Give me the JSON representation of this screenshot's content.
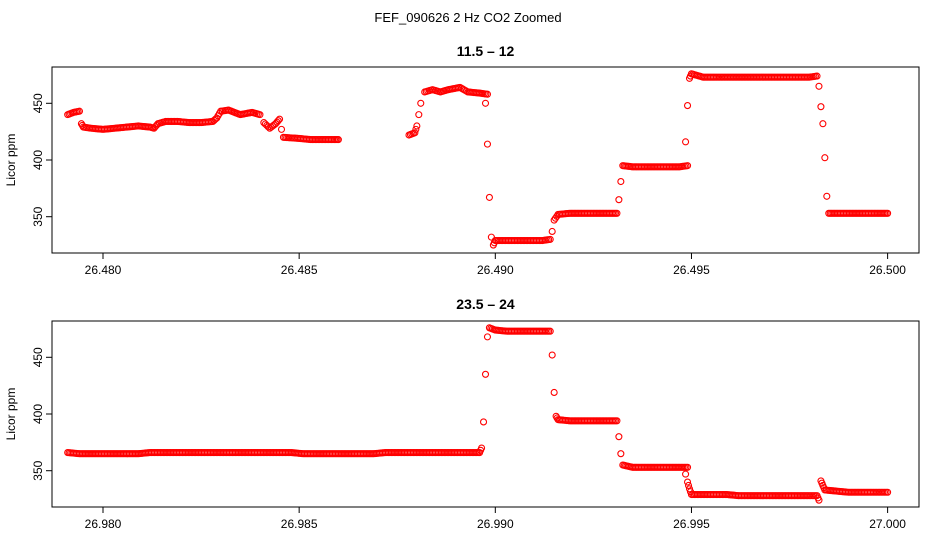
{
  "figure_title": "FEF_090626  2 Hz CO2 Zoomed",
  "colors": {
    "marker": "#ff0000",
    "axis": "#000000",
    "background": "#ffffff"
  },
  "chart_data": [
    {
      "type": "scatter",
      "title": "11.5 – 12",
      "xlabel": "",
      "ylabel": "Licor ppm",
      "xlim": [
        26.4787,
        26.5008
      ],
      "ylim": [
        318,
        482
      ],
      "x_ticks": [
        "26.480",
        "26.485",
        "26.490",
        "26.495",
        "26.500"
      ],
      "x_tick_values": [
        26.48,
        26.485,
        26.49,
        26.495,
        26.5
      ],
      "y_ticks": [
        "350",
        "400",
        "450"
      ],
      "y_tick_values": [
        350,
        400,
        450
      ],
      "grid": false,
      "marker": "open-circle",
      "series": [
        {
          "values": [
            [
              26.4791,
              440
            ],
            [
              26.47925,
              442
            ],
            [
              26.4794,
              443
            ],
            [
              26.47945,
              432
            ],
            [
              26.4795,
              429
            ],
            [
              26.4797,
              428
            ],
            [
              26.48,
              427
            ],
            [
              26.4803,
              428
            ],
            [
              26.4806,
              429
            ],
            [
              26.4809,
              430
            ],
            [
              26.4812,
              429
            ],
            [
              26.4813,
              428
            ],
            [
              26.4814,
              432
            ],
            [
              26.4816,
              434
            ],
            [
              26.4819,
              434
            ],
            [
              26.4822,
              433
            ],
            [
              26.4825,
              433
            ],
            [
              26.4828,
              434
            ],
            [
              26.4829,
              437
            ],
            [
              26.483,
              443
            ],
            [
              26.4832,
              444
            ],
            [
              26.4835,
              440
            ],
            [
              26.4838,
              442
            ],
            [
              26.484,
              440
            ],
            [
              26.4841,
              433
            ],
            [
              26.48425,
              428
            ],
            [
              26.4844,
              432
            ],
            [
              26.4845,
              436
            ],
            [
              26.48455,
              427
            ],
            [
              26.4846,
              420
            ],
            [
              26.485,
              419
            ],
            [
              26.4853,
              418
            ],
            [
              26.4856,
              418
            ],
            [
              26.4859,
              418
            ],
            [
              26.486,
              418
            ],
            [
              26.4878,
              422
            ],
            [
              26.48795,
              424
            ],
            [
              26.488,
              430
            ],
            [
              26.48805,
              440
            ],
            [
              26.4881,
              450
            ],
            [
              26.4882,
              460
            ],
            [
              26.4884,
              462
            ],
            [
              26.4886,
              460
            ],
            [
              26.4888,
              462
            ],
            [
              26.4891,
              464
            ],
            [
              26.4893,
              460
            ],
            [
              26.4896,
              459
            ],
            [
              26.4898,
              458
            ],
            [
              26.48975,
              450
            ],
            [
              26.4898,
              414
            ],
            [
              26.48985,
              367
            ],
            [
              26.4899,
              332
            ],
            [
              26.48995,
              325
            ],
            [
              26.49,
              329
            ],
            [
              26.4903,
              329
            ],
            [
              26.4906,
              329
            ],
            [
              26.4909,
              329
            ],
            [
              26.4912,
              329
            ],
            [
              26.4914,
              330
            ],
            [
              26.49145,
              337
            ],
            [
              26.4915,
              347
            ],
            [
              26.4916,
              352
            ],
            [
              26.4919,
              353
            ],
            [
              26.4922,
              353
            ],
            [
              26.4925,
              353
            ],
            [
              26.4928,
              353
            ],
            [
              26.4931,
              353
            ],
            [
              26.49315,
              365
            ],
            [
              26.4932,
              381
            ],
            [
              26.49325,
              395
            ],
            [
              26.4935,
              394
            ],
            [
              26.4938,
              394
            ],
            [
              26.4941,
              394
            ],
            [
              26.4944,
              394
            ],
            [
              26.4947,
              394
            ],
            [
              26.4949,
              395
            ],
            [
              26.49485,
              416
            ],
            [
              26.4949,
              448
            ],
            [
              26.49495,
              472
            ],
            [
              26.495,
              476
            ],
            [
              26.4953,
              473
            ],
            [
              26.4956,
              473
            ],
            [
              26.496,
              473
            ],
            [
              26.4965,
              473
            ],
            [
              26.497,
              473
            ],
            [
              26.4975,
              473
            ],
            [
              26.498,
              473
            ],
            [
              26.4982,
              474
            ],
            [
              26.49825,
              465
            ],
            [
              26.4983,
              447
            ],
            [
              26.49835,
              432
            ],
            [
              26.4984,
              402
            ],
            [
              26.49845,
              368
            ],
            [
              26.4985,
              353
            ],
            [
              26.4988,
              353
            ],
            [
              26.4991,
              353
            ],
            [
              26.4994,
              353
            ],
            [
              26.4997,
              353
            ],
            [
              26.5,
              353
            ]
          ]
        }
      ]
    },
    {
      "type": "scatter",
      "title": "23.5 – 24",
      "xlabel": "",
      "ylabel": "Licor ppm",
      "xlim": [
        26.9787,
        27.0008
      ],
      "ylim": [
        318,
        482
      ],
      "x_ticks": [
        "26.980",
        "26.985",
        "26.990",
        "26.995",
        "27.000"
      ],
      "x_tick_values": [
        26.98,
        26.985,
        26.99,
        26.995,
        27.0
      ],
      "y_ticks": [
        "350",
        "400",
        "450"
      ],
      "y_tick_values": [
        350,
        400,
        450
      ],
      "grid": false,
      "marker": "open-circle",
      "series": [
        {
          "values": [
            [
              26.9791,
              366
            ],
            [
              26.9794,
              365
            ],
            [
              26.9797,
              365
            ],
            [
              26.98,
              365
            ],
            [
              26.9803,
              365
            ],
            [
              26.9806,
              365
            ],
            [
              26.9809,
              365
            ],
            [
              26.9812,
              366
            ],
            [
              26.9815,
              366
            ],
            [
              26.9818,
              366
            ],
            [
              26.9821,
              366
            ],
            [
              26.9824,
              366
            ],
            [
              26.9827,
              366
            ],
            [
              26.983,
              366
            ],
            [
              26.9833,
              366
            ],
            [
              26.9836,
              366
            ],
            [
              26.9839,
              366
            ],
            [
              26.9842,
              366
            ],
            [
              26.9845,
              366
            ],
            [
              26.9848,
              366
            ],
            [
              26.9851,
              365
            ],
            [
              26.9854,
              365
            ],
            [
              26.9857,
              365
            ],
            [
              26.986,
              365
            ],
            [
              26.9863,
              365
            ],
            [
              26.9866,
              365
            ],
            [
              26.9869,
              365
            ],
            [
              26.9872,
              366
            ],
            [
              26.9875,
              366
            ],
            [
              26.9878,
              366
            ],
            [
              26.9881,
              366
            ],
            [
              26.9884,
              366
            ],
            [
              26.9887,
              366
            ],
            [
              26.989,
              366
            ],
            [
              26.9893,
              366
            ],
            [
              26.9896,
              366
            ],
            [
              26.98965,
              370
            ],
            [
              26.9897,
              393
            ],
            [
              26.98975,
              435
            ],
            [
              26.9898,
              468
            ],
            [
              26.98985,
              476
            ],
            [
              26.99,
              474
            ],
            [
              26.9903,
              473
            ],
            [
              26.9906,
              473
            ],
            [
              26.9909,
              473
            ],
            [
              26.9912,
              473
            ],
            [
              26.9914,
              473
            ],
            [
              26.99145,
              452
            ],
            [
              26.9915,
              419
            ],
            [
              26.99155,
              398
            ],
            [
              26.9916,
              395
            ],
            [
              26.9919,
              394
            ],
            [
              26.9922,
              394
            ],
            [
              26.9925,
              394
            ],
            [
              26.9928,
              394
            ],
            [
              26.9931,
              394
            ],
            [
              26.99315,
              380
            ],
            [
              26.9932,
              365
            ],
            [
              26.99325,
              355
            ],
            [
              26.9935,
              353
            ],
            [
              26.9938,
              353
            ],
            [
              26.9941,
              353
            ],
            [
              26.9944,
              353
            ],
            [
              26.9947,
              353
            ],
            [
              26.9949,
              353
            ],
            [
              26.99485,
              347
            ],
            [
              26.9949,
              340
            ],
            [
              26.99495,
              334
            ],
            [
              26.995,
              329
            ],
            [
              26.9953,
              329
            ],
            [
              26.9956,
              329
            ],
            [
              26.9959,
              329
            ],
            [
              26.9962,
              328
            ],
            [
              26.9965,
              328
            ],
            [
              26.9968,
              328
            ],
            [
              26.9971,
              328
            ],
            [
              26.9974,
              328
            ],
            [
              26.9977,
              328
            ],
            [
              26.998,
              328
            ],
            [
              26.9982,
              328
            ],
            [
              26.99825,
              324
            ],
            [
              26.9983,
              341
            ],
            [
              26.99835,
              337
            ],
            [
              26.9984,
              333
            ],
            [
              26.9987,
              332
            ],
            [
              26.999,
              331
            ],
            [
              26.9993,
              331
            ],
            [
              26.9996,
              331
            ],
            [
              27.0,
              331
            ]
          ]
        }
      ]
    }
  ]
}
